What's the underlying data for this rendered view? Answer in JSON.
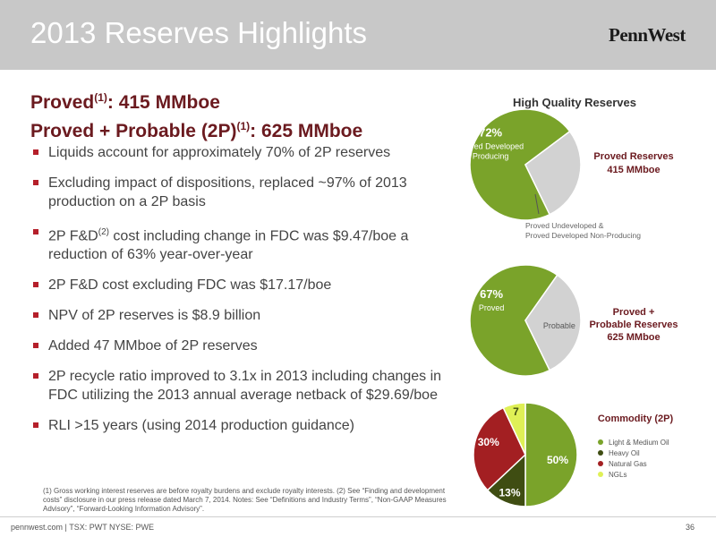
{
  "header": {
    "title": "2013 Reserves Highlights",
    "logo_text": "PennWest"
  },
  "headline": {
    "line1_prefix": "Proved",
    "line1_sup": "(1)",
    "line1_suffix": ": 415 MMboe",
    "line2_prefix": "Proved + Probable (2P)",
    "line2_sup": "(1)",
    "line2_suffix": ": 625 MMboe"
  },
  "bullets": [
    {
      "text": "Liquids account for approximately 70% of 2P reserves"
    },
    {
      "text": "Excluding impact of dispositions, replaced ~97% of 2013 production on a 2P basis"
    },
    {
      "before": "2P F&D",
      "sup": "(2)",
      "after": " cost including change in FDC was $9.47/boe a reduction of 63% year-over-year"
    },
    {
      "text": "2P F&D cost excluding FDC was $17.17/boe"
    },
    {
      "text": "NPV of 2P reserves is $8.9 billion"
    },
    {
      "text": "Added 47 MMboe of 2P reserves"
    },
    {
      "text": "2P recycle ratio improved to 3.1x in 2013 including changes in FDC utilizing the 2013 annual average netback of $29.69/boe"
    },
    {
      "text": "RLI >15 years (using 2014 production guidance)"
    }
  ],
  "footnote": "(1) Gross working interest reserves are before royalty burdens and exclude royalty interests. (2) See “Finding and development costs” disclosure in our press release dated March 7, 2014. Notes: See “Definitions and Industry Terms”, “Non-GAAP Measures Advisory”, “Forward-Looking Information Advisory”.",
  "footer": {
    "left": "pennwest.com | TSX: PWT  NYSE: PWE",
    "page": "36"
  },
  "colors": {
    "green": "#7aa32a",
    "gray": "#d2d2d2",
    "dark_green": "#3f4d12",
    "red": "#a31f22",
    "lime": "#dff056",
    "maroon": "#6b1a1f",
    "bullet": "#b51f2a"
  },
  "chart_data": [
    {
      "type": "pie",
      "title": "High Quality Reserves",
      "side_label": [
        "Proved Reserves",
        "415 MMboe"
      ],
      "slices": [
        {
          "label": "Proved Developed Producing",
          "value": 72,
          "value_label": "72%",
          "color": "#7aa32a"
        },
        {
          "label": "Proved Undeveloped & Proved Developed Non-Producing",
          "value": 28,
          "color": "#d2d2d2"
        }
      ],
      "callout": [
        "Proved Undeveloped &",
        "Proved Developed Non-Producing"
      ]
    },
    {
      "type": "pie",
      "title": "",
      "side_label": [
        "Proved +",
        "Probable Reserves",
        "625 MMboe"
      ],
      "slices": [
        {
          "label": "Proved",
          "value": 67,
          "value_label": "67%",
          "color": "#7aa32a"
        },
        {
          "label": "Probable",
          "value": 33,
          "color": "#d2d2d2"
        }
      ]
    },
    {
      "type": "pie",
      "title": "Commodity (2P)",
      "slices": [
        {
          "label": "Light & Medium Oil",
          "value": 50,
          "value_label": "50%",
          "color": "#7aa32a"
        },
        {
          "label": "Heavy Oil",
          "value": 13,
          "value_label": "13%",
          "color": "#3f4d12"
        },
        {
          "label": "Natural Gas",
          "value": 30,
          "value_label": "30%",
          "color": "#a31f22"
        },
        {
          "label": "NGLs",
          "value": 7,
          "value_label": "7",
          "color": "#dff056"
        }
      ],
      "legend": [
        "Light & Medium Oil",
        "Heavy Oil",
        "Natural Gas",
        "NGLs"
      ],
      "legend_position": "right"
    }
  ]
}
